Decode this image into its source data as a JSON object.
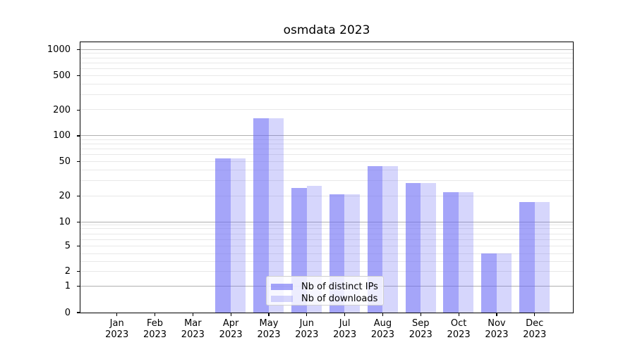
{
  "title": "osmdata 2023",
  "chart_data": {
    "type": "bar",
    "title": "osmdata 2023",
    "categories": [
      "Jan 2023",
      "Feb 2023",
      "Mar 2023",
      "Apr 2023",
      "May 2023",
      "Jun 2023",
      "Jul 2023",
      "Aug 2023",
      "Sep 2023",
      "Oct 2023",
      "Nov 2023",
      "Dec 2023"
    ],
    "series": [
      {
        "name": "Nb of distinct IPs",
        "color": "rgba(105,105,245,0.60)",
        "values": [
          0,
          0,
          0,
          55,
          160,
          25,
          21,
          44,
          28,
          22,
          4,
          17
        ]
      },
      {
        "name": "Nb of downloads",
        "color": "rgba(105,105,245,0.27)",
        "values": [
          0,
          0,
          0,
          55,
          160,
          26,
          21,
          44,
          28,
          22,
          4,
          17
        ]
      }
    ],
    "y_axis": {
      "tick_values": [
        1000,
        500,
        200,
        100,
        50,
        20,
        10,
        5,
        2,
        1,
        0
      ],
      "scale_note": "log above 10, compressed log 1-10, linear 0-1",
      "major_gridlines": [
        1,
        10,
        100,
        1000
      ],
      "minor_gridlines": [
        2,
        3,
        4,
        5,
        6,
        7,
        8,
        9,
        20,
        30,
        40,
        50,
        60,
        70,
        80,
        90,
        200,
        300,
        400,
        500,
        600,
        700,
        800,
        900
      ],
      "anchors": [
        [
          0,
          0
        ],
        [
          1,
          0.0979
        ],
        [
          2,
          0.1518
        ],
        [
          3,
          0.1891
        ],
        [
          4,
          0.2177
        ],
        [
          5,
          0.2453
        ],
        [
          6,
          0.2682
        ],
        [
          7,
          0.2906
        ],
        [
          8,
          0.3117
        ],
        [
          9,
          0.325
        ],
        [
          10,
          0.3349
        ]
      ],
      "decade_fraction": 0.3188,
      "ylim_top_value": 1200
    },
    "x_axis": {
      "first_center_fraction": 0.07407,
      "center_step_fraction": 0.07711,
      "bar_width_fraction": 0.0308
    },
    "legend": {
      "position": "lower-center-inside"
    },
    "grid": true,
    "colors": {
      "major_grid": "#b0b0b0",
      "minor_grid": "#e8e8e8",
      "spine": "#000000",
      "legend_border": "#d0d0d0",
      "legend_bg": "rgba(255,255,255,0.8)",
      "text": "#000000"
    }
  }
}
